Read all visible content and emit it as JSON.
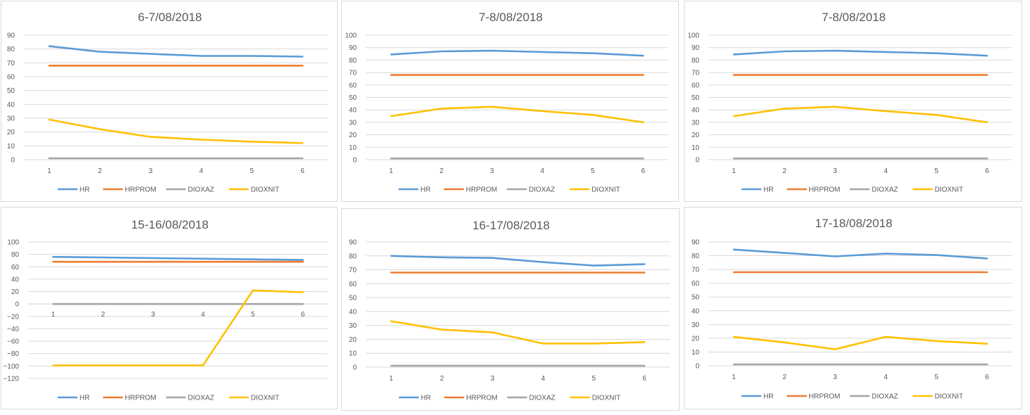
{
  "colors": {
    "HR": "#5b9bd5",
    "HRPROM": "#ed7d31",
    "DIOXAZ": "#a5a5a5",
    "DIOXNIT": "#ffc000"
  },
  "chart_data": [
    {
      "type": "line",
      "title": "6-7/08/2018",
      "x": [
        1,
        2,
        3,
        4,
        5,
        6
      ],
      "ylim": [
        0,
        90
      ],
      "yticks": [
        0,
        10,
        20,
        30,
        40,
        50,
        60,
        70,
        80,
        90
      ],
      "grid": true,
      "legend": "bottom",
      "series": [
        {
          "name": "HR",
          "values": [
            82,
            78,
            76.5,
            75,
            75,
            74.5
          ]
        },
        {
          "name": "HRPROM",
          "values": [
            68,
            68,
            68,
            68,
            68,
            68
          ]
        },
        {
          "name": "DIOXAZ",
          "values": [
            1,
            1,
            1,
            1,
            1,
            1
          ]
        },
        {
          "name": "DIOXNIT",
          "values": [
            29,
            22,
            16.5,
            14.5,
            13,
            12
          ]
        }
      ]
    },
    {
      "type": "line",
      "title": "7-8/08/2018",
      "x": [
        1,
        2,
        3,
        4,
        5,
        6
      ],
      "ylim": [
        0,
        100
      ],
      "yticks": [
        0,
        10,
        20,
        30,
        40,
        50,
        60,
        70,
        80,
        90,
        100
      ],
      "grid": true,
      "legend": "bottom",
      "series": [
        {
          "name": "HR",
          "values": [
            84.5,
            87,
            87.5,
            86.5,
            85.5,
            83.5
          ]
        },
        {
          "name": "HRPROM",
          "values": [
            68,
            68,
            68,
            68,
            68,
            68
          ]
        },
        {
          "name": "DIOXAZ",
          "values": [
            1,
            1,
            1,
            1,
            1,
            1
          ]
        },
        {
          "name": "DIOXNIT",
          "values": [
            35,
            41,
            42.5,
            39,
            36,
            30
          ]
        }
      ]
    },
    {
      "type": "line",
      "title": "7-8/08/2018",
      "x": [
        1,
        2,
        3,
        4,
        5,
        6
      ],
      "ylim": [
        0,
        100
      ],
      "yticks": [
        0,
        10,
        20,
        30,
        40,
        50,
        60,
        70,
        80,
        90,
        100
      ],
      "grid": true,
      "legend": "bottom",
      "series": [
        {
          "name": "HR",
          "values": [
            84.5,
            87,
            87.5,
            86.5,
            85.5,
            83.5
          ]
        },
        {
          "name": "HRPROM",
          "values": [
            68,
            68,
            68,
            68,
            68,
            68
          ]
        },
        {
          "name": "DIOXAZ",
          "values": [
            1,
            1,
            1,
            1,
            1,
            1
          ]
        },
        {
          "name": "DIOXNIT",
          "values": [
            35,
            41,
            42.5,
            39,
            36,
            30
          ]
        }
      ]
    },
    {
      "type": "line",
      "title": "15-16/08/2018",
      "x": [
        1,
        2,
        3,
        4,
        5,
        6
      ],
      "ylim": [
        -120,
        100
      ],
      "yticks": [
        -120,
        -100,
        -80,
        -60,
        -40,
        -20,
        0,
        20,
        40,
        60,
        80,
        100
      ],
      "xlabels_at_zero": true,
      "grid": true,
      "legend": "bottom",
      "series": [
        {
          "name": "HR",
          "values": [
            76,
            75,
            74,
            73,
            72,
            71
          ]
        },
        {
          "name": "HRPROM",
          "values": [
            68,
            68,
            68,
            68,
            68,
            68
          ]
        },
        {
          "name": "DIOXAZ",
          "values": [
            0,
            0,
            0,
            0,
            0,
            0
          ]
        },
        {
          "name": "DIOXNIT",
          "values": [
            -99,
            -99,
            -99,
            -99,
            22,
            19
          ]
        }
      ]
    },
    {
      "type": "line",
      "title": "16-17/08/2018",
      "x": [
        1,
        2,
        3,
        4,
        5,
        6
      ],
      "ylim": [
        0,
        90
      ],
      "yticks": [
        0,
        10,
        20,
        30,
        40,
        50,
        60,
        70,
        80,
        90
      ],
      "grid": true,
      "legend": "bottom",
      "series": [
        {
          "name": "HR",
          "values": [
            80,
            79,
            78.5,
            75.5,
            73,
            74
          ]
        },
        {
          "name": "HRPROM",
          "values": [
            68,
            68,
            68,
            68,
            68,
            68
          ]
        },
        {
          "name": "DIOXAZ",
          "values": [
            1,
            1,
            1,
            1,
            1,
            1
          ]
        },
        {
          "name": "DIOXNIT",
          "values": [
            33,
            27,
            25,
            17,
            17,
            18
          ]
        }
      ]
    },
    {
      "type": "line",
      "title": "17-18/08/2018",
      "x": [
        1,
        2,
        3,
        4,
        5,
        6
      ],
      "ylim": [
        0,
        90
      ],
      "yticks": [
        0,
        10,
        20,
        30,
        40,
        50,
        60,
        70,
        80,
        90
      ],
      "grid": true,
      "legend": "bottom",
      "series": [
        {
          "name": "HR",
          "values": [
            84.5,
            82,
            79.5,
            81.5,
            80.5,
            78
          ]
        },
        {
          "name": "HRPROM",
          "values": [
            68,
            68,
            68,
            68,
            68,
            68
          ]
        },
        {
          "name": "DIOXAZ",
          "values": [
            1,
            1,
            1,
            1,
            1,
            1
          ]
        },
        {
          "name": "DIOXNIT",
          "values": [
            21,
            17,
            12,
            21,
            18,
            16
          ]
        }
      ]
    }
  ]
}
